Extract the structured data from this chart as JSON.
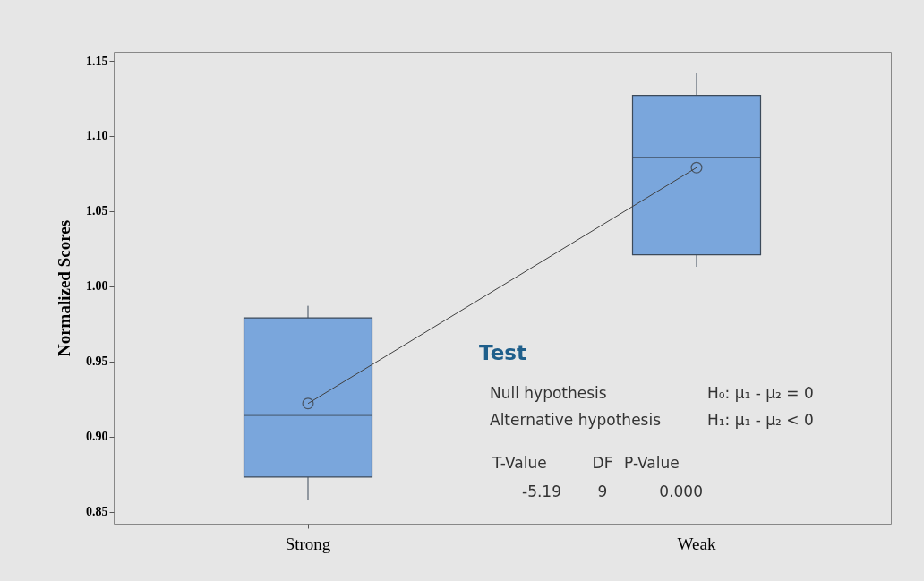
{
  "chart_data": {
    "type": "box",
    "ylabel": "Normalized Scores",
    "categories": [
      "Strong",
      "Weak"
    ],
    "ylim": [
      0.842,
      1.156
    ],
    "yticks": [
      0.85,
      {
        "value": 0.9,
        "label": "0.90"
      },
      0.95,
      {
        "value": 1.0,
        "label": "1.00"
      },
      1.05,
      {
        "value": 1.1,
        "label": "1.10"
      },
      1.15
    ],
    "grid": false,
    "boxes": [
      {
        "low": 0.858,
        "q1": 0.873,
        "median": 0.914,
        "q3": 0.979,
        "high": 0.987,
        "mean": 0.922
      },
      {
        "low": 1.013,
        "q1": 1.021,
        "median": 1.086,
        "q3": 1.127,
        "high": 1.142,
        "mean": 1.079
      }
    ],
    "series": [
      {
        "type": "line",
        "color": "#404040",
        "values": [
          0.922,
          1.079
        ]
      }
    ],
    "annotations": [
      "Test",
      "Null hypothesis",
      "H₀: μ₁ - μ₂ = 0",
      "Alternative hypothesis",
      "H₁: μ₁ - μ₂ < 0",
      "T-Value",
      "DF",
      "P-Value",
      "-5.19",
      "9",
      "0.000"
    ]
  }
}
